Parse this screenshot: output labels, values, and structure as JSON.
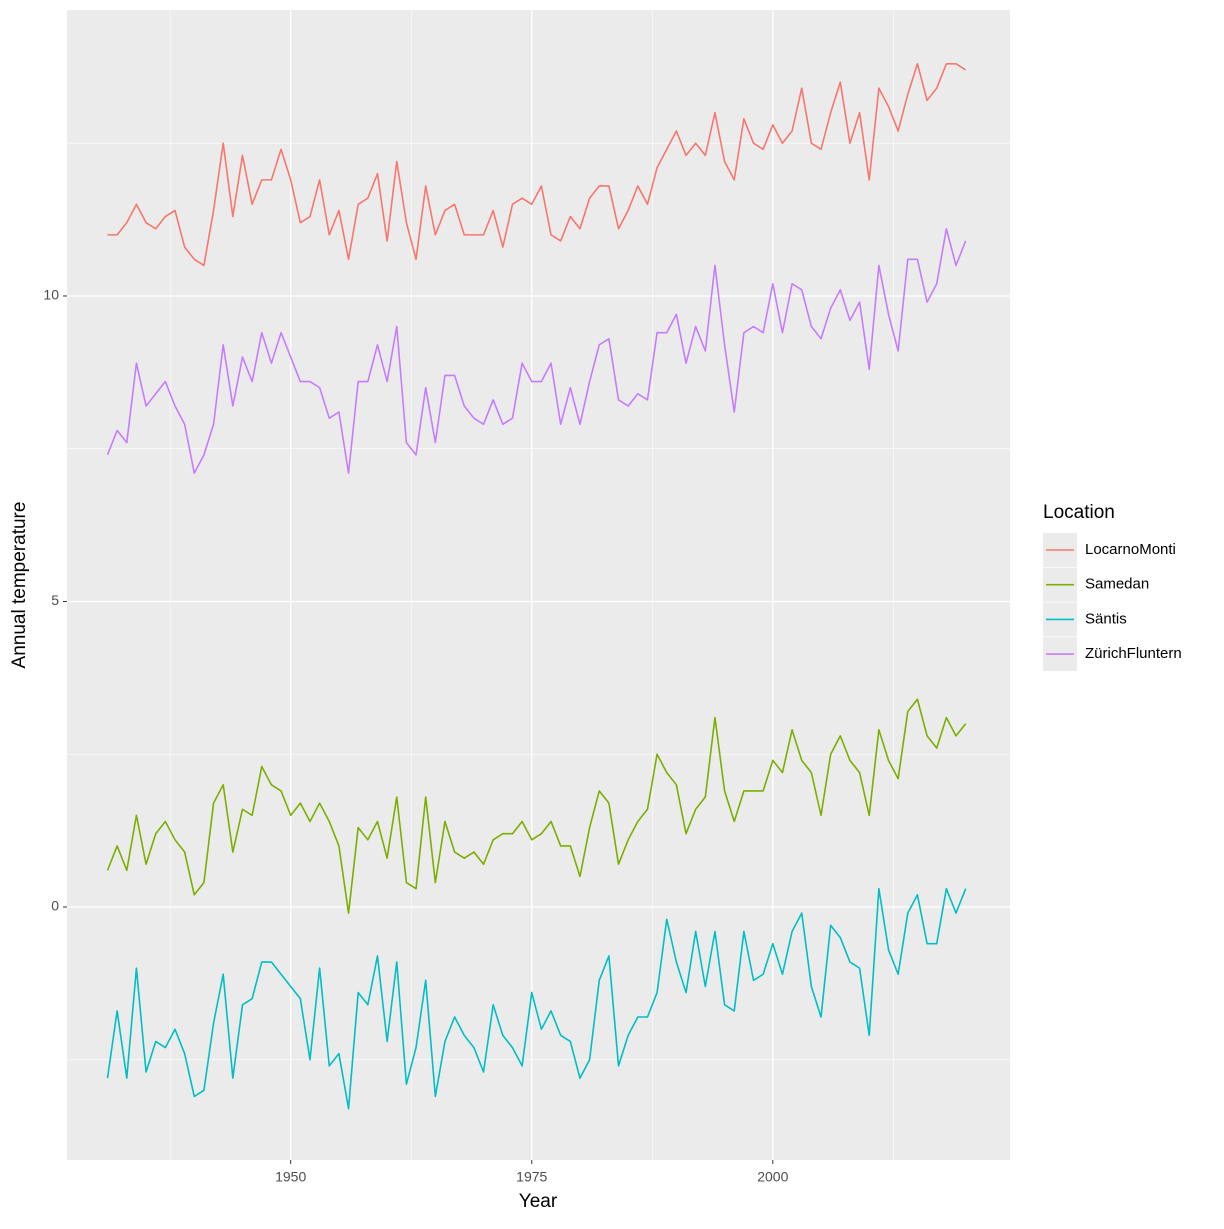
{
  "chart_data": {
    "type": "line",
    "x_label": "Year",
    "y_label": "Annual temperature",
    "legend_title": "Location",
    "legend_position": "right",
    "x": [
      1931,
      1932,
      1933,
      1934,
      1935,
      1936,
      1937,
      1938,
      1939,
      1940,
      1941,
      1942,
      1943,
      1944,
      1945,
      1946,
      1947,
      1948,
      1949,
      1950,
      1951,
      1952,
      1953,
      1954,
      1955,
      1956,
      1957,
      1958,
      1959,
      1960,
      1961,
      1962,
      1963,
      1964,
      1965,
      1966,
      1967,
      1968,
      1969,
      1970,
      1971,
      1972,
      1973,
      1974,
      1975,
      1976,
      1977,
      1978,
      1979,
      1980,
      1981,
      1982,
      1983,
      1984,
      1985,
      1986,
      1987,
      1988,
      1989,
      1990,
      1991,
      1992,
      1993,
      1994,
      1995,
      1996,
      1997,
      1998,
      1999,
      2000,
      2001,
      2002,
      2003,
      2004,
      2005,
      2006,
      2007,
      2008,
      2009,
      2010,
      2011,
      2012,
      2013,
      2014,
      2015,
      2016,
      2017,
      2018,
      2019,
      2020
    ],
    "series": [
      {
        "name": "LocarnoMonti",
        "color": "#F8766D",
        "values": [
          11.0,
          11.0,
          11.2,
          11.5,
          11.2,
          11.1,
          11.3,
          11.4,
          10.8,
          10.6,
          10.5,
          11.4,
          12.5,
          11.3,
          12.3,
          11.5,
          11.9,
          11.9,
          12.4,
          11.9,
          11.2,
          11.3,
          11.9,
          11.0,
          11.4,
          10.6,
          11.5,
          11.6,
          12.0,
          10.9,
          12.2,
          11.2,
          10.6,
          11.8,
          11.0,
          11.4,
          11.5,
          11.0,
          11.0,
          11.0,
          11.4,
          10.8,
          11.5,
          11.6,
          11.5,
          11.8,
          11.0,
          10.9,
          11.3,
          11.1,
          11.6,
          11.8,
          11.8,
          11.1,
          11.4,
          11.8,
          11.5,
          12.1,
          12.4,
          12.7,
          12.3,
          12.5,
          12.3,
          13.0,
          12.2,
          11.9,
          12.9,
          12.5,
          12.4,
          12.8,
          12.5,
          12.7,
          13.4,
          12.5,
          12.4,
          13.0,
          13.5,
          12.5,
          13.0,
          11.9,
          13.4,
          13.1,
          12.7,
          13.3,
          13.8,
          13.2,
          13.4,
          13.8,
          13.8,
          13.7
        ]
      },
      {
        "name": "Samedan",
        "color": "#7CAE00",
        "values": [
          0.6,
          1.0,
          0.6,
          1.5,
          0.7,
          1.2,
          1.4,
          1.1,
          0.9,
          0.2,
          0.4,
          1.7,
          2.0,
          0.9,
          1.6,
          1.5,
          2.3,
          2.0,
          1.9,
          1.5,
          1.7,
          1.4,
          1.7,
          1.4,
          1.0,
          -0.1,
          1.3,
          1.1,
          1.4,
          0.8,
          1.8,
          0.4,
          0.3,
          1.8,
          0.4,
          1.4,
          0.9,
          0.8,
          0.9,
          0.7,
          1.1,
          1.2,
          1.2,
          1.4,
          1.1,
          1.2,
          1.4,
          1.0,
          1.0,
          0.5,
          1.3,
          1.9,
          1.7,
          0.7,
          1.1,
          1.4,
          1.6,
          2.5,
          2.2,
          2.0,
          1.2,
          1.6,
          1.8,
          3.1,
          1.9,
          1.4,
          1.9,
          1.9,
          1.9,
          2.4,
          2.2,
          2.9,
          2.4,
          2.2,
          1.5,
          2.5,
          2.8,
          2.4,
          2.2,
          1.5,
          2.9,
          2.4,
          2.1,
          3.2,
          3.4,
          2.8,
          2.6,
          3.1,
          2.8,
          3.0
        ]
      },
      {
        "name": "Säntis",
        "color": "#00BFC4",
        "values": [
          -2.8,
          -1.7,
          -2.8,
          -1.0,
          -2.7,
          -2.2,
          -2.3,
          -2.0,
          -2.4,
          -3.1,
          -3.0,
          -1.9,
          -1.1,
          -2.8,
          -1.6,
          -1.5,
          -0.9,
          -0.9,
          -1.1,
          -1.3,
          -1.5,
          -2.5,
          -1.0,
          -2.6,
          -2.4,
          -3.3,
          -1.4,
          -1.6,
          -0.8,
          -2.2,
          -0.9,
          -2.9,
          -2.3,
          -1.2,
          -3.1,
          -2.2,
          -1.8,
          -2.1,
          -2.3,
          -2.7,
          -1.6,
          -2.1,
          -2.3,
          -2.6,
          -1.4,
          -2.0,
          -1.7,
          -2.1,
          -2.2,
          -2.8,
          -2.5,
          -1.2,
          -0.8,
          -2.6,
          -2.1,
          -1.8,
          -1.8,
          -1.4,
          -0.2,
          -0.9,
          -1.4,
          -0.4,
          -1.3,
          -0.4,
          -1.6,
          -1.7,
          -0.4,
          -1.2,
          -1.1,
          -0.6,
          -1.1,
          -0.4,
          -0.1,
          -1.3,
          -1.8,
          -0.3,
          -0.5,
          -0.9,
          -1.0,
          -2.1,
          0.3,
          -0.7,
          -1.1,
          -0.1,
          0.2,
          -0.6,
          -0.6,
          0.3,
          -0.1,
          0.3
        ]
      },
      {
        "name": "ZürichFluntern",
        "color": "#C77CFF",
        "values": [
          7.4,
          7.8,
          7.6,
          8.9,
          8.2,
          8.4,
          8.6,
          8.2,
          7.9,
          7.1,
          7.4,
          7.9,
          9.2,
          8.2,
          9.0,
          8.6,
          9.4,
          8.9,
          9.4,
          9.0,
          8.6,
          8.6,
          8.5,
          8.0,
          8.1,
          7.1,
          8.6,
          8.6,
          9.2,
          8.6,
          9.5,
          7.6,
          7.4,
          8.5,
          7.6,
          8.7,
          8.7,
          8.2,
          8.0,
          7.9,
          8.3,
          7.9,
          8.0,
          8.9,
          8.6,
          8.6,
          8.9,
          7.9,
          8.5,
          7.9,
          8.6,
          9.2,
          9.3,
          8.3,
          8.2,
          8.4,
          8.3,
          9.4,
          9.4,
          9.7,
          8.9,
          9.5,
          9.1,
          10.5,
          9.2,
          8.1,
          9.4,
          9.5,
          9.4,
          10.2,
          9.4,
          10.2,
          10.1,
          9.5,
          9.3,
          9.8,
          10.1,
          9.6,
          9.9,
          8.8,
          10.5,
          9.7,
          9.1,
          10.6,
          10.6,
          9.9,
          10.2,
          11.1,
          10.5,
          10.9
        ]
      }
    ],
    "xlim": [
      1926.8,
      2024.6
    ],
    "xticks": [
      1950,
      1975,
      2000
    ],
    "minor_xticks": [
      1937.5,
      1962.5,
      1987.5,
      2012.5
    ],
    "ylim": [
      -4.14,
      14.68
    ],
    "yticks": [
      0,
      5,
      10
    ],
    "minor_yticks": [
      -2.5,
      2.5,
      7.5,
      12.5
    ],
    "grid": true
  }
}
